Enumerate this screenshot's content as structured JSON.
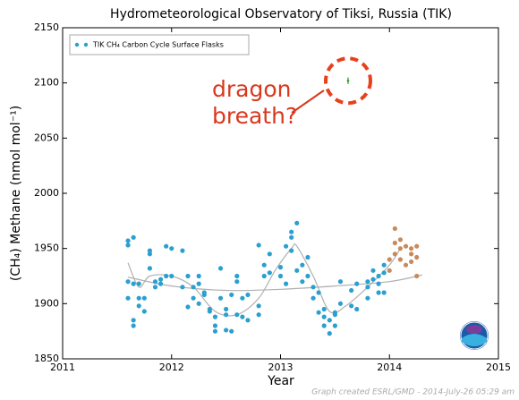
{
  "chart_data": {
    "type": "scatter",
    "title": "Hydrometeorological Observatory of Tiksi, Russia (TIK)",
    "xlabel": "Year",
    "ylabel": "(CH₄) Methane (nmol mol⁻¹)",
    "annotation": [
      "dragon",
      "breath?"
    ],
    "footer": "Graph created ESRL/GMD - 2014-July-26 05:29 am",
    "xlim": [
      2011,
      2015
    ],
    "xticks": [
      2011,
      2012,
      2013,
      2014,
      2015
    ],
    "ylim": [
      1850,
      2150
    ],
    "yticks": [
      1850,
      1900,
      1950,
      2000,
      2050,
      2100,
      2150
    ],
    "legend": "upper left",
    "series": [
      {
        "name": "TIK CH₄ Carbon Cycle Surface Flasks",
        "color": "#2a9fd0",
        "x": [
          2011.6,
          2011.6,
          2011.6,
          2011.6,
          2011.65,
          2011.65,
          2011.65,
          2011.65,
          2011.7,
          2011.7,
          2011.7,
          2011.75,
          2011.75,
          2011.8,
          2011.8,
          2011.8,
          2011.85,
          2011.85,
          2011.9,
          2011.9,
          2011.95,
          2011.95,
          2012.0,
          2012.0,
          2012.1,
          2012.1,
          2012.15,
          2012.15,
          2012.2,
          2012.2,
          2012.25,
          2012.25,
          2012.25,
          2012.3,
          2012.3,
          2012.35,
          2012.35,
          2012.4,
          2012.4,
          2012.4,
          2012.45,
          2012.45,
          2012.5,
          2012.5,
          2012.5,
          2012.55,
          2012.55,
          2012.6,
          2012.6,
          2012.6,
          2012.65,
          2012.65,
          2012.7,
          2012.7,
          2012.8,
          2012.8,
          2012.8,
          2012.85,
          2012.85,
          2012.9,
          2012.9,
          2013.0,
          2013.0,
          2013.05,
          2013.05,
          2013.1,
          2013.1,
          2013.1,
          2013.15,
          2013.15,
          2013.2,
          2013.2,
          2013.25,
          2013.25,
          2013.3,
          2013.3,
          2013.35,
          2013.35,
          2013.4,
          2013.4,
          2013.4,
          2013.45,
          2013.45,
          2013.5,
          2013.5,
          2013.5,
          2013.55,
          2013.55,
          2013.65,
          2013.65,
          2013.7,
          2013.7,
          2013.8,
          2013.8,
          2013.8,
          2013.85,
          2013.85,
          2013.9,
          2013.9,
          2013.9,
          2013.95,
          2013.95,
          2013.95
        ],
        "values": [
          1953,
          1957,
          1920,
          1905,
          1960,
          1885,
          1880,
          1918,
          1918,
          1905,
          1898,
          1905,
          1893,
          1945,
          1932,
          1948,
          1920,
          1915,
          1922,
          1918,
          1952,
          1925,
          1925,
          1950,
          1915,
          1948,
          1897,
          1925,
          1905,
          1915,
          1925,
          1918,
          1900,
          1910,
          1908,
          1893,
          1895,
          1875,
          1880,
          1888,
          1932,
          1905,
          1890,
          1895,
          1876,
          1875,
          1908,
          1920,
          1925,
          1890,
          1905,
          1888,
          1885,
          1908,
          1898,
          1890,
          1953,
          1925,
          1935,
          1928,
          1945,
          1933,
          1925,
          1918,
          1952,
          1960,
          1965,
          1948,
          1973,
          1930,
          1935,
          1920,
          1942,
          1925,
          1915,
          1905,
          1910,
          1892,
          1895,
          1888,
          1880,
          1885,
          1873,
          1890,
          1892,
          1880,
          1900,
          1920,
          1898,
          1912,
          1895,
          1918,
          1905,
          1920,
          1915,
          1930,
          1922,
          1918,
          1910,
          1925,
          1928,
          1910,
          1935
        ]
      },
      {
        "color": "#c88a5a",
        "x": [
          2014.0,
          2014.0,
          2014.05,
          2014.05,
          2014.05,
          2014.1,
          2014.1,
          2014.1,
          2014.15,
          2014.15,
          2014.2,
          2014.2,
          2014.2,
          2014.25,
          2014.25,
          2014.25
        ],
        "values": [
          1930,
          1940,
          1955,
          1968,
          1945,
          1958,
          1940,
          1950,
          1952,
          1935,
          1945,
          1938,
          1950,
          1942,
          1952,
          1925
        ]
      },
      {
        "color": "#2ca02c",
        "x": [
          2013.62
        ],
        "values": [
          2102
        ],
        "errors": [
          3
        ]
      },
      {
        "type": "line",
        "color": "#b0b0b0",
        "x": [
          2011.6,
          2011.7,
          2011.8,
          2012.0,
          2012.2,
          2012.4,
          2012.6,
          2012.8,
          2012.95,
          2013.1,
          2013.15,
          2013.3,
          2013.45,
          2013.6,
          2013.8,
          2014.0,
          2014.1
        ],
        "values": [
          1937,
          1915,
          1925,
          1925,
          1915,
          1893,
          1890,
          1905,
          1930,
          1950,
          1952,
          1925,
          1893,
          1898,
          1915,
          1935,
          1950
        ]
      },
      {
        "type": "line",
        "color": "#b0b0b0",
        "x": [
          2011.6,
          2012.0,
          2012.5,
          2013.0,
          2013.5,
          2014.0,
          2014.3
        ],
        "values": [
          1924,
          1916,
          1912,
          1913,
          1916,
          1920,
          1926
        ]
      }
    ]
  }
}
